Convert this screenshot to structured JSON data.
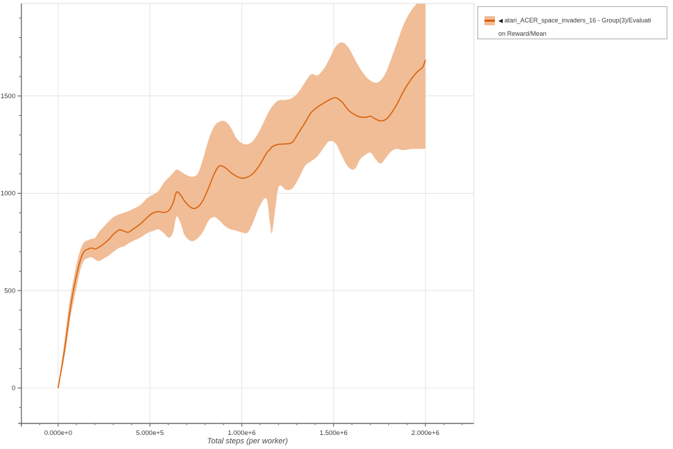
{
  "legend": {
    "marker": "◀",
    "line1": "atari_ACER_space_invaders_16 - Group(3)/Evaluati",
    "line2": "on Reward/Mean",
    "series_full_name": "atari_ACER_space_invaders_16 - Group(3)/Evaluation Reward/Mean"
  },
  "colors": {
    "line": "#d9610a",
    "band": "#f0bd97",
    "grid": "#e4e4e4",
    "plot_border": "#dcdcdc",
    "axis": "#6b6b6b",
    "tick": "#6b6b6b",
    "tick_label": "#3a3a3a",
    "axis_title": "#4a4a4a",
    "background": "#ffffff"
  },
  "chart_data": {
    "type": "line",
    "title": "",
    "xlabel": "Total steps (per worker)",
    "ylabel": "",
    "grid": true,
    "legend_position": "top-right-outside",
    "series_name": "atari_ACER_space_invaders_16 - Group(3)/Evaluation Reward/Mean",
    "band_meaning": "shaded min-max / std band around mean",
    "xlim": [
      -202000,
      2264000
    ],
    "ylim": [
      -180,
      1975
    ],
    "x_major": [
      {
        "v": 0,
        "label": "0.000e+0"
      },
      {
        "v": 500000,
        "label": "5.000e+5"
      },
      {
        "v": 1000000,
        "label": "1.000e+6"
      },
      {
        "v": 1500000,
        "label": "1.500e+6"
      },
      {
        "v": 2000000,
        "label": "2.000e+6"
      }
    ],
    "y_major": [
      {
        "v": 0,
        "label": "0"
      },
      {
        "v": 500,
        "label": "500"
      },
      {
        "v": 1000,
        "label": "1000"
      },
      {
        "v": 1500,
        "label": "1500"
      }
    ],
    "x_minor_step": 100000,
    "y_minor_step": 100,
    "points_format": [
      "step",
      "mean",
      "band_low",
      "band_high"
    ],
    "points": [
      [
        0,
        0,
        0,
        0
      ],
      [
        27000,
        150,
        120,
        185
      ],
      [
        46000,
        270,
        225,
        330
      ],
      [
        65000,
        400,
        350,
        460
      ],
      [
        84000,
        505,
        445,
        560
      ],
      [
        103000,
        590,
        528,
        648
      ],
      [
        122000,
        660,
        610,
        712
      ],
      [
        141000,
        700,
        655,
        748
      ],
      [
        164000,
        714,
        668,
        760
      ],
      [
        183000,
        719,
        672,
        766
      ],
      [
        202000,
        714,
        660,
        772
      ],
      [
        221000,
        722,
        652,
        800
      ],
      [
        248000,
        740,
        665,
        828
      ],
      [
        275000,
        762,
        680,
        855
      ],
      [
        302000,
        790,
        700,
        878
      ],
      [
        332000,
        812,
        720,
        892
      ],
      [
        359000,
        806,
        728,
        900
      ],
      [
        382000,
        800,
        742,
        908
      ],
      [
        408000,
        816,
        755,
        920
      ],
      [
        447000,
        842,
        772,
        940
      ],
      [
        485000,
        876,
        795,
        975
      ],
      [
        515000,
        898,
        806,
        992
      ],
      [
        546000,
        906,
        815,
        1012
      ],
      [
        576000,
        902,
        795,
        1055
      ],
      [
        603000,
        912,
        772,
        1082
      ],
      [
        626000,
        952,
        800,
        1105
      ],
      [
        645000,
        1006,
        880,
        1122
      ],
      [
        668000,
        990,
        845,
        1112
      ],
      [
        687000,
        962,
        788,
        1100
      ],
      [
        714000,
        934,
        760,
        1088
      ],
      [
        737000,
        922,
        755,
        1086
      ],
      [
        763000,
        932,
        772,
        1105
      ],
      [
        790000,
        966,
        805,
        1180
      ],
      [
        821000,
        1032,
        862,
        1280
      ],
      [
        851000,
        1102,
        878,
        1345
      ],
      [
        878000,
        1140,
        860,
        1368
      ],
      [
        908000,
        1133,
        832,
        1370
      ],
      [
        939000,
        1108,
        815,
        1340
      ],
      [
        970000,
        1088,
        808,
        1285
      ],
      [
        1000000,
        1078,
        800,
        1258
      ],
      [
        1031000,
        1083,
        798,
        1252
      ],
      [
        1061000,
        1102,
        850,
        1270
      ],
      [
        1095000,
        1142,
        930,
        1318
      ],
      [
        1134000,
        1205,
        973,
        1395
      ],
      [
        1153000,
        1225,
        850,
        1428
      ],
      [
        1164000,
        1238,
        795,
        1444
      ],
      [
        1180000,
        1246,
        900,
        1462
      ],
      [
        1202000,
        1252,
        1035,
        1478
      ],
      [
        1240000,
        1254,
        1018,
        1480
      ],
      [
        1275000,
        1262,
        1025,
        1490
      ],
      [
        1309000,
        1310,
        1075,
        1520
      ],
      [
        1344000,
        1362,
        1140,
        1570
      ],
      [
        1378000,
        1415,
        1165,
        1612
      ],
      [
        1412000,
        1443,
        1190,
        1606
      ],
      [
        1447000,
        1464,
        1235,
        1640
      ],
      [
        1477000,
        1480,
        1268,
        1690
      ],
      [
        1512000,
        1491,
        1255,
        1755
      ],
      [
        1546000,
        1469,
        1190,
        1775
      ],
      [
        1580000,
        1428,
        1135,
        1750
      ],
      [
        1615000,
        1404,
        1125,
        1690
      ],
      [
        1645000,
        1392,
        1175,
        1640
      ],
      [
        1676000,
        1391,
        1200,
        1600
      ],
      [
        1702000,
        1396,
        1208,
        1578
      ],
      [
        1729000,
        1381,
        1175,
        1568
      ],
      [
        1756000,
        1372,
        1153,
        1580
      ],
      [
        1787000,
        1381,
        1185,
        1625
      ],
      [
        1813000,
        1410,
        1215,
        1690
      ],
      [
        1844000,
        1456,
        1228,
        1770
      ],
      [
        1874000,
        1512,
        1222,
        1850
      ],
      [
        1905000,
        1562,
        1225,
        1912
      ],
      [
        1935000,
        1602,
        1228,
        1955
      ],
      [
        1962000,
        1630,
        1228,
        1985
      ],
      [
        1985000,
        1648,
        1229,
        2030
      ],
      [
        2000000,
        1685,
        1230,
        2060
      ]
    ]
  }
}
